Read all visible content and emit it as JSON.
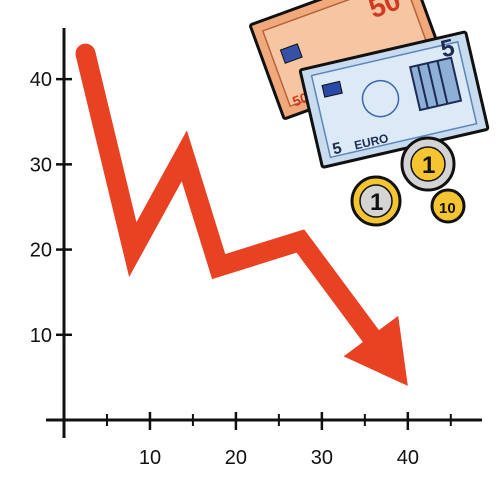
{
  "chart_data": {
    "type": "line",
    "title": "",
    "xlabel": "",
    "ylabel": "",
    "x_ticks": [
      "10",
      "20",
      "30",
      "40"
    ],
    "y_ticks": [
      "10",
      "20",
      "30",
      "40"
    ],
    "x_tick_values": [
      10,
      20,
      30,
      40
    ],
    "y_tick_values": [
      10,
      20,
      30,
      40
    ],
    "xlim": [
      0,
      47
    ],
    "ylim": [
      0,
      46
    ],
    "series": [
      {
        "color": "#e84222",
        "points": [
          {
            "x": 2.5,
            "y": 43
          },
          {
            "x": 8,
            "y": 20
          },
          {
            "x": 14,
            "y": 31
          },
          {
            "x": 18,
            "y": 18
          },
          {
            "x": 27.5,
            "y": 21
          },
          {
            "x": 40,
            "y": 4
          }
        ]
      }
    ],
    "grid": false,
    "arrowhead": true
  },
  "clipart": {
    "banknote_large_denomination": "50",
    "banknote_small_denomination": "5",
    "banknote_currency_text": "EURO",
    "coin_1_text": "1",
    "coin_2_text": "1",
    "coin_3_text": "10",
    "colors": {
      "note50": "#f0a97a",
      "note5": "#c9dcef",
      "coin_gold": "#f4c431",
      "coin_silver": "#d4d4d4"
    }
  }
}
